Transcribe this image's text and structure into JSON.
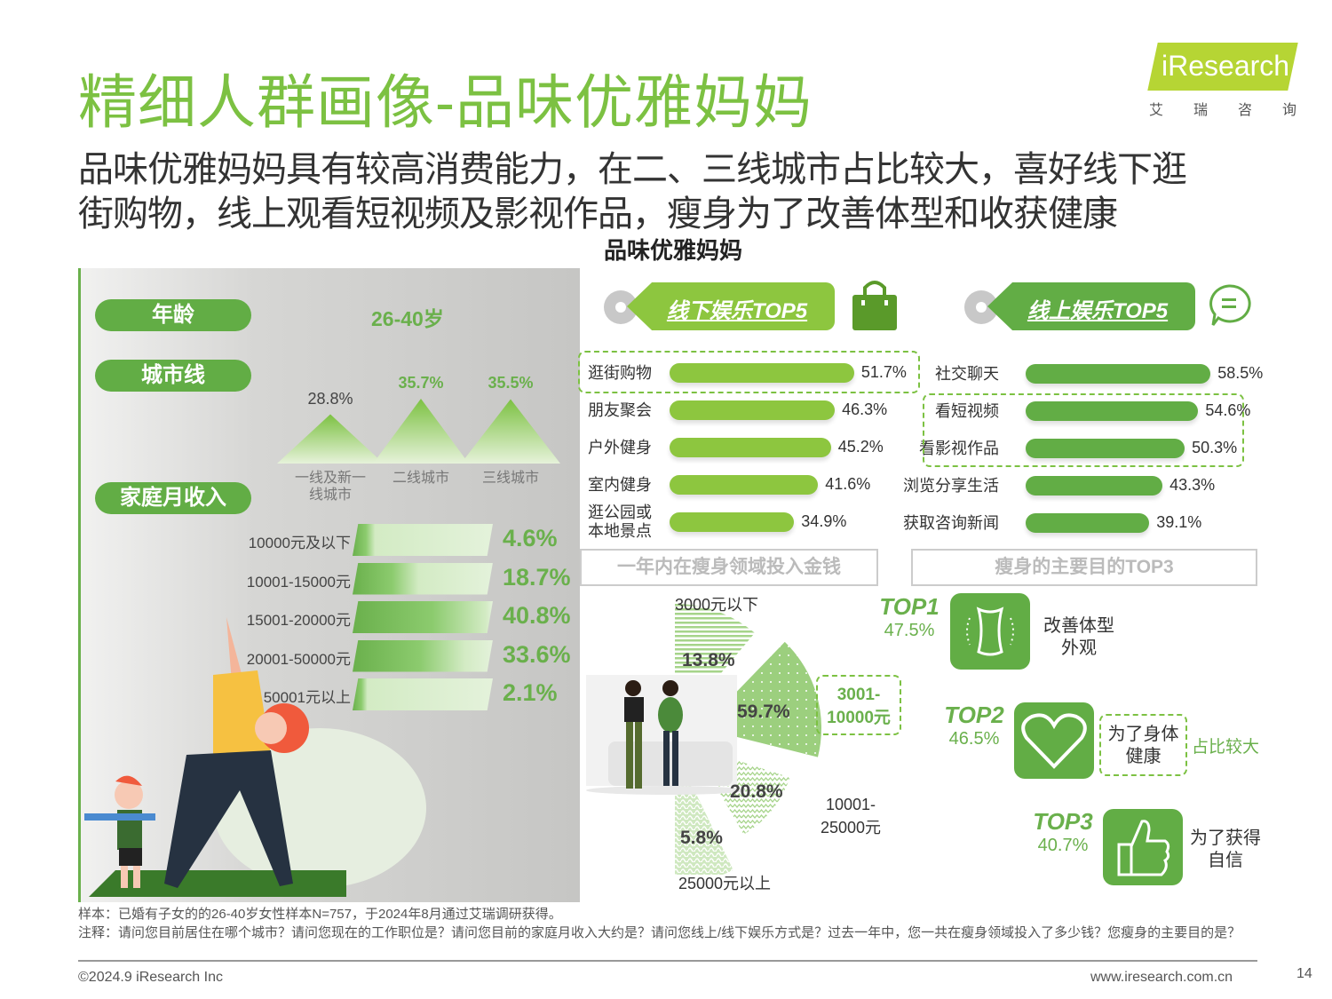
{
  "title": "精细人群画像-品味优雅妈妈",
  "logo": {
    "brand": "iResearch",
    "sub": [
      "艾",
      "瑞",
      "咨",
      "询"
    ]
  },
  "subtitle": [
    "品味优雅妈妈具有较高消费能力，在二、三线城市占比较大，喜好线下逛",
    "街购物，线上观看短视频及影视作品，瘦身为了改善体型和收获健康"
  ],
  "center_label": "品味优雅妈妈",
  "profile": {
    "age_label": "年龄",
    "age_value": "26-40岁",
    "city_label": "城市线",
    "income_label": "家庭月收入"
  },
  "offline_tag": "线下娱乐TOP5",
  "online_tag": "线上娱乐TOP5",
  "spend_header": "一年内在瘦身领域投入金钱",
  "purpose_header": "瘦身的主要目的TOP3",
  "pie_labels": {
    "a": "3000元以下",
    "b": "3001-\n10000元",
    "b1": "3001-",
    "b2": "10000元",
    "c1": "10001-",
    "c2": "25000元",
    "d": "25000元以上"
  },
  "purposes": [
    {
      "rank": "TOP1",
      "value": "47.5%",
      "line1": "改善体型",
      "line2": "外观"
    },
    {
      "rank": "TOP2",
      "value": "46.5%",
      "line1": "为了身体",
      "line2": "健康"
    },
    {
      "rank": "TOP3",
      "value": "40.7%",
      "line1": "为了获得",
      "line2": "自信"
    }
  ],
  "highlight_note": "占比较大",
  "notes": {
    "sample": "样本：已婚有子女的的26-40岁女性样本N=757，于2024年8月通过艾瑞调研获得。",
    "remark": "注释：请问您目前居住在哪个城市？请问您现在的工作职位是？请问您目前的家庭月收入大约是？请问您线上/线下娱乐方式是？过去一年中，您一共在瘦身领域投入了多少钱？您瘦身的主要目的是？"
  },
  "footer": {
    "copyright": "©2024.9 iResearch Inc",
    "url": "www.iresearch.com.cn",
    "page": "14"
  },
  "colors": {
    "green": "#6ab04c",
    "light_green": "#8dc63f",
    "title_green": "#7cc142"
  },
  "chart_data": [
    {
      "type": "area",
      "title": "城市线",
      "categories": [
        "一线及新一线城市",
        "二线城市",
        "三线城市"
      ],
      "values": [
        28.8,
        35.7,
        35.5
      ],
      "labels": [
        "28.8%",
        "35.7%",
        "35.5%"
      ]
    },
    {
      "type": "bar",
      "title": "家庭月收入",
      "categories": [
        "10000元及以下",
        "10001-15000元",
        "15001-20000元",
        "20001-50000元",
        "50001元以上"
      ],
      "values": [
        4.6,
        18.7,
        40.8,
        33.6,
        2.1
      ],
      "labels": [
        "4.6%",
        "18.7%",
        "40.8%",
        "33.6%",
        "2.1%"
      ]
    },
    {
      "type": "bar",
      "title": "线下娱乐TOP5",
      "categories": [
        "逛街购物",
        "朋友聚会",
        "户外健身",
        "室内健身",
        "逛公园或本地景点"
      ],
      "values": [
        51.7,
        46.3,
        45.2,
        41.6,
        34.9
      ],
      "labels": [
        "51.7%",
        "46.3%",
        "45.2%",
        "41.6%",
        "34.9%"
      ]
    },
    {
      "type": "bar",
      "title": "线上娱乐TOP5",
      "categories": [
        "社交聊天",
        "看短视频",
        "看影视作品",
        "浏览分享生活",
        "获取咨询新闻"
      ],
      "values": [
        58.5,
        54.6,
        50.3,
        43.3,
        39.1
      ],
      "labels": [
        "58.5%",
        "54.6%",
        "50.3%",
        "43.3%",
        "39.1%"
      ]
    },
    {
      "type": "pie",
      "title": "一年内在瘦身领域投入金钱",
      "categories": [
        "3000元以下",
        "3001-10000元",
        "10001-25000元",
        "25000元以上"
      ],
      "values": [
        13.8,
        59.7,
        20.8,
        5.8
      ],
      "labels": [
        "13.8%",
        "59.7%",
        "20.8%",
        "5.8%"
      ]
    }
  ]
}
